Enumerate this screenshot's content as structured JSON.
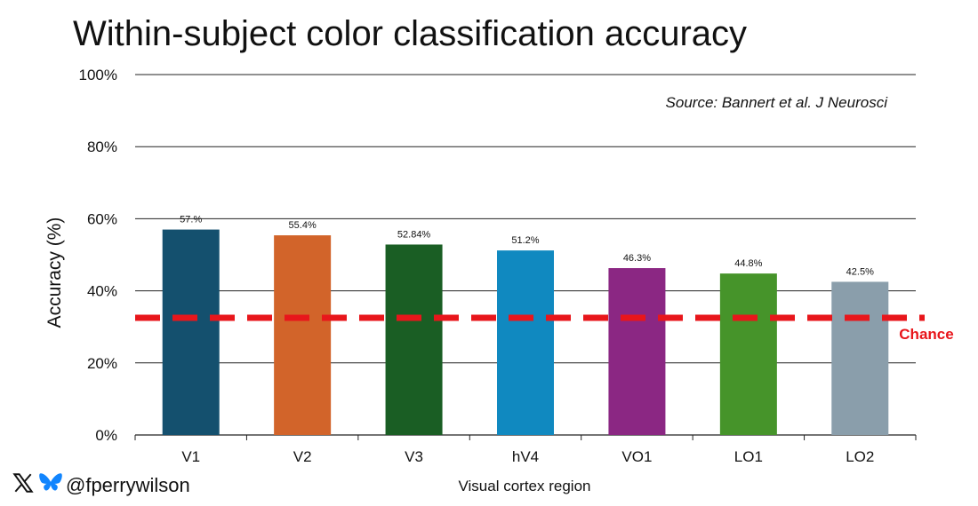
{
  "chart_data": {
    "type": "bar",
    "title": "Within-subject color classification accuracy",
    "source_note": "Source: Bannert et al. J Neurosci",
    "xlabel": "Visual cortex region",
    "ylabel": "Accuracy (%)",
    "ylim": [
      0,
      100
    ],
    "yticks": [
      "0%",
      "20%",
      "40%",
      "60%",
      "80%",
      "100%"
    ],
    "ytick_values": [
      0,
      20,
      40,
      60,
      80,
      100
    ],
    "grid": true,
    "categories": [
      "V1",
      "V2",
      "V3",
      "hV4",
      "VO1",
      "LO1",
      "LO2"
    ],
    "values": [
      57.0,
      55.4,
      52.84,
      51.2,
      46.3,
      44.8,
      42.5
    ],
    "data_labels": [
      "57.%",
      "55.4%",
      "52.84%",
      "51.2%",
      "46.3%",
      "44.8%",
      "42.5%"
    ],
    "colors": [
      "#14506e",
      "#d2642a",
      "#1a5e24",
      "#1089c0",
      "#8b2783",
      "#46942a",
      "#8a9eab"
    ],
    "reference_line": {
      "label": "Chance",
      "value": 32.5,
      "color": "#e8161b"
    }
  },
  "footer": {
    "handle": "@fperrywilson",
    "icons": [
      "x-logo-icon",
      "bluesky-butterfly-icon"
    ]
  }
}
